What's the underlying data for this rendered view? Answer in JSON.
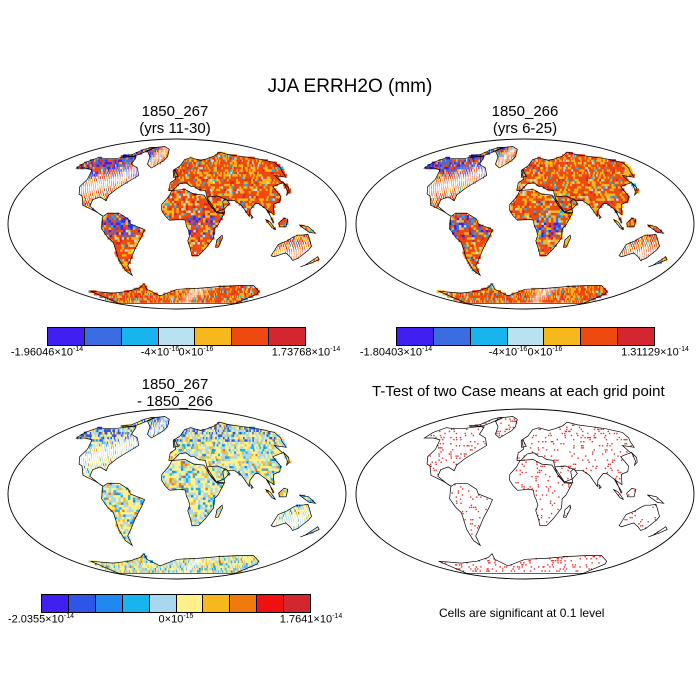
{
  "title": "JJA ERRH2O (mm)",
  "panels": [
    {
      "id": "p1",
      "line1": "1850_267",
      "line2": "(yrs 11-30)",
      "palette": [
        "#4020f0",
        "#3a6ee0",
        "#18b4ee",
        "#b8e2f0",
        "#f6b81a",
        "#ee4a10",
        "#d4262e"
      ],
      "labels": [
        {
          "mant": "-1.96046",
          "exp": "-14"
        },
        {
          "mant": "-4",
          "exp": "-16"
        },
        {
          "mant": "0",
          "exp": "-16"
        },
        {
          "mant": "1.73768",
          "exp": "-14"
        }
      ]
    },
    {
      "id": "p2",
      "line1": "1850_266",
      "line2": "(yrs 6-25)",
      "palette": [
        "#4020f0",
        "#3a6ee0",
        "#18b4ee",
        "#b8e2f0",
        "#f6b81a",
        "#ee4a10",
        "#d4262e"
      ],
      "labels": [
        {
          "mant": "-1.80403",
          "exp": "-14"
        },
        {
          "mant": "-4",
          "exp": "-16"
        },
        {
          "mant": "0",
          "exp": "-16"
        },
        {
          "mant": "1.31129",
          "exp": "-14"
        }
      ]
    },
    {
      "id": "p3",
      "line1": "1850_267",
      "line2": "- 1850_266",
      "palette": [
        "#4020f0",
        "#2e55e8",
        "#2088ee",
        "#18b4ee",
        "#a8d8f0",
        "#fef08a",
        "#f6b81a",
        "#f07a10",
        "#f01010",
        "#d4262e"
      ],
      "labels": [
        {
          "mant": "-2.0355",
          "exp": "-14"
        },
        {
          "mant": "0",
          "exp": "-15"
        },
        {
          "mant": "1.7641",
          "exp": "-14"
        }
      ]
    },
    {
      "id": "p4",
      "title": "T-Test of two Case means at each grid point",
      "note": "Cells are significant at 0.1 level"
    }
  ],
  "times_sign": "×",
  "base": "10"
}
